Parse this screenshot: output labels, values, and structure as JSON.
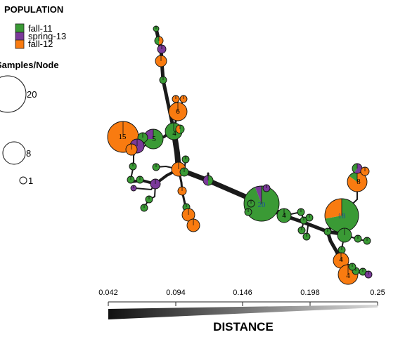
{
  "legend": {
    "population_title": "POPULATION",
    "populations": [
      {
        "name": "fall-11",
        "color": "#3a9a35"
      },
      {
        "name": "spring-13",
        "color": "#7b3a9a"
      },
      {
        "name": "fall-12",
        "color": "#f97b10"
      }
    ],
    "size_title": "Samples/Node",
    "size_entries": [
      {
        "label": "20",
        "samples": 20
      },
      {
        "label": "8",
        "samples": 8
      },
      {
        "label": "1",
        "samples": 1
      }
    ]
  },
  "axis": {
    "title": "DISTANCE",
    "ticks": [
      "0.042",
      "0.094",
      "0.146",
      "0.198",
      "0.25"
    ],
    "range": [
      0.042,
      0.25
    ]
  },
  "network": {
    "edge_color": "#1a1a1a",
    "node_labels": [
      {
        "id": "n15",
        "text": "15"
      },
      {
        "id": "n20",
        "text": "20"
      },
      {
        "id": "n18",
        "text": "18"
      },
      {
        "id": "n8",
        "text": "8"
      },
      {
        "id": "n6",
        "text": "6"
      },
      {
        "id": "n5",
        "text": "5"
      },
      {
        "id": "n4a",
        "text": "4"
      },
      {
        "id": "n4b",
        "text": "4"
      },
      {
        "id": "n4c",
        "text": "4"
      },
      {
        "id": "n4d",
        "text": "4"
      }
    ]
  }
}
